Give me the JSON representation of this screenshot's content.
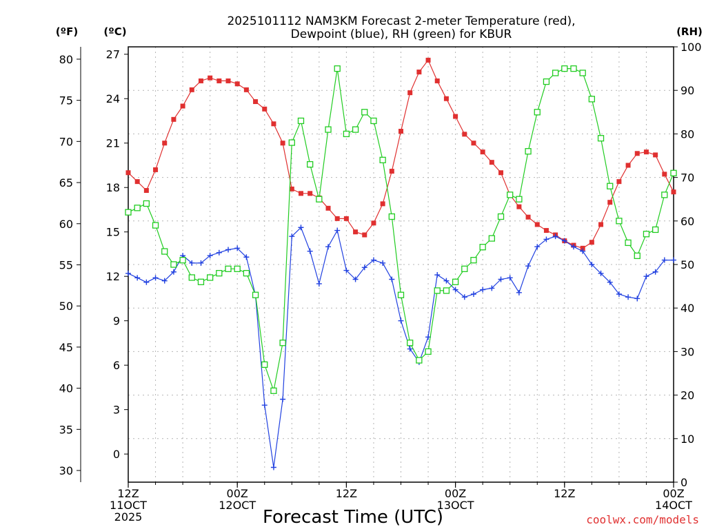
{
  "chart_data": {
    "type": "line",
    "title_line1": "2025101112 NAM3KM Forecast 2-meter Temperature (red),",
    "title_line2": "Dewpoint (blue), RH (green) for KBUR",
    "xlabel": "Forecast Time (UTC)",
    "credit": "coolwx.com/models",
    "units": {
      "fahrenheit": "(ºF)",
      "celsius": "(ºC)",
      "rh": "(RH)"
    },
    "left_axis_celsius": {
      "range": [
        -1.9,
        27.5
      ],
      "ticks": [
        "0",
        "3",
        "6",
        "9",
        "12",
        "15",
        "18",
        "21",
        "24",
        "27"
      ]
    },
    "left_axis_fahrenheit": {
      "ticks": [
        "30",
        "35",
        "40",
        "45",
        "50",
        "55",
        "60",
        "65",
        "70",
        "75",
        "80"
      ]
    },
    "right_axis_rh": {
      "range": [
        0,
        100
      ],
      "ticks": [
        "0",
        "10",
        "20",
        "30",
        "40",
        "50",
        "60",
        "70",
        "80",
        "90",
        "100"
      ]
    },
    "x_range_hours": [
      0,
      60
    ],
    "x_ticks": [
      {
        "hour": 0,
        "line1": "12Z",
        "line2": "11OCT",
        "line3": "2025"
      },
      {
        "hour": 12,
        "line1": "00Z",
        "line2": "12OCT",
        "line3": ""
      },
      {
        "hour": 24,
        "line1": "12Z",
        "line2": "",
        "line3": ""
      },
      {
        "hour": 36,
        "line1": "00Z",
        "line2": "13OCT",
        "line3": ""
      },
      {
        "hour": 48,
        "line1": "12Z",
        "line2": "",
        "line3": ""
      },
      {
        "hour": 60,
        "line1": "00Z",
        "line2": "14OCT",
        "line3": ""
      }
    ],
    "x_hours": [
      0,
      1,
      2,
      3,
      4,
      5,
      6,
      7,
      8,
      9,
      10,
      11,
      12,
      13,
      14,
      15,
      16,
      17,
      18,
      19,
      20,
      21,
      22,
      23,
      24,
      25,
      26,
      27,
      28,
      29,
      30,
      31,
      32,
      33,
      34,
      35,
      36,
      37,
      38,
      39,
      40,
      41,
      42,
      43,
      44,
      45,
      46,
      47,
      48,
      49,
      50,
      51,
      52,
      53,
      54,
      55,
      56,
      57,
      58,
      59,
      60
    ],
    "series": [
      {
        "key": "temperature",
        "color": "#e03030",
        "marker": "filled-square",
        "unit": "degC",
        "values": [
          19.0,
          18.4,
          17.8,
          19.2,
          21.0,
          22.6,
          23.5,
          24.6,
          25.2,
          25.4,
          25.2,
          25.2,
          25.0,
          24.6,
          23.8,
          23.3,
          22.3,
          21.0,
          17.9,
          17.6,
          17.6,
          17.3,
          16.6,
          15.9,
          15.9,
          15.0,
          14.8,
          15.6,
          16.9,
          19.1,
          21.8,
          24.4,
          25.8,
          26.6,
          25.2,
          24.0,
          22.8,
          21.6,
          21.0,
          20.4,
          19.7,
          19.0,
          17.5,
          16.7,
          16.0,
          15.5,
          15.1,
          14.8,
          14.4,
          14.1,
          13.9,
          14.3,
          15.5,
          17.0,
          18.4,
          19.5,
          20.3,
          20.4,
          20.2,
          18.9,
          17.7
        ]
      },
      {
        "key": "dewpoint",
        "color": "#2040e0",
        "marker": "plus",
        "unit": "degC",
        "values": [
          12.2,
          11.9,
          11.6,
          11.9,
          11.7,
          12.3,
          13.4,
          12.9,
          12.9,
          13.4,
          13.6,
          13.8,
          13.9,
          13.3,
          10.7,
          3.3,
          -0.9,
          3.7,
          14.7,
          15.3,
          13.7,
          11.5,
          14.0,
          15.1,
          12.4,
          11.8,
          12.6,
          13.1,
          12.9,
          11.8,
          9.0,
          7.1,
          6.2,
          7.9,
          12.1,
          11.7,
          11.1,
          10.6,
          10.8,
          11.1,
          11.2,
          11.8,
          11.9,
          10.9,
          12.7,
          14.0,
          14.5,
          14.7,
          14.4,
          14.0,
          13.7,
          12.8,
          12.2,
          11.6,
          10.8,
          10.6,
          10.5,
          12.0,
          12.3,
          13.1,
          13.1
        ]
      },
      {
        "key": "rh",
        "color": "#20cc20",
        "marker": "open-square",
        "unit": "percent",
        "values": [
          62,
          63,
          64,
          59,
          53,
          50,
          51,
          47,
          46,
          47,
          48,
          49,
          49,
          48,
          43,
          27,
          21,
          32,
          78,
          83,
          73,
          65,
          81,
          95,
          80,
          81,
          85,
          83,
          74,
          61,
          43,
          32,
          28,
          30,
          44,
          44,
          46,
          49,
          51,
          54,
          56,
          61,
          66,
          65,
          76,
          85,
          92,
          94,
          95,
          95,
          94,
          88,
          79,
          68,
          60,
          55,
          52,
          57,
          58,
          66,
          71
        ]
      }
    ]
  }
}
